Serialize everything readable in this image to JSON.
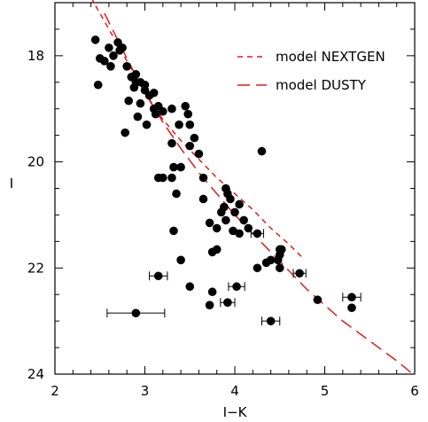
{
  "chart_data": {
    "type": "scatter",
    "xlabel": "I−K",
    "ylabel": "I",
    "xlim": [
      2,
      6
    ],
    "ylim": [
      24,
      17.0
    ],
    "y_inverted": true,
    "x_ticks": [
      2,
      3,
      4,
      5,
      6
    ],
    "y_ticks": [
      18,
      20,
      22,
      24
    ],
    "grid": false,
    "legend_position": "top-right",
    "colors": {
      "points": "#000000",
      "models": "#e41a1c"
    },
    "series": [
      {
        "type": "line",
        "style": "short-dash",
        "name": "model NEXTGEN",
        "x": [
          2.4,
          2.6,
          2.8,
          3.0,
          3.2,
          3.4,
          3.6,
          3.8,
          4.0,
          4.2,
          4.4,
          4.6,
          4.75
        ],
        "y": [
          16.9,
          17.5,
          18.1,
          18.7,
          19.2,
          19.6,
          19.95,
          20.3,
          20.6,
          20.9,
          21.25,
          21.55,
          21.8
        ]
      },
      {
        "type": "line",
        "style": "long-dash",
        "name": "model DUSTY",
        "x": [
          2.55,
          2.8,
          3.0,
          3.2,
          3.4,
          3.6,
          3.8,
          4.0,
          4.2,
          4.4,
          4.6,
          4.8,
          5.0,
          5.2,
          5.4,
          5.6,
          5.8,
          5.98
        ],
        "y": [
          17.2,
          18.05,
          18.7,
          19.25,
          19.75,
          20.2,
          20.6,
          21.0,
          21.35,
          21.7,
          22.05,
          22.4,
          22.7,
          23.0,
          23.25,
          23.5,
          23.75,
          24.0
        ]
      },
      {
        "type": "scatter",
        "x": [
          2.45,
          2.5,
          2.55,
          2.6,
          2.65,
          2.7,
          2.72,
          2.75,
          2.48,
          2.62,
          2.8,
          2.85,
          2.82,
          2.9,
          2.88,
          2.95,
          3.0,
          2.95,
          2.92,
          3.05,
          3.1,
          3.12,
          3.02,
          2.78,
          2.9,
          3.0,
          3.1,
          3.15,
          3.2,
          3.3,
          3.45,
          3.48,
          3.5,
          3.38,
          3.3,
          3.32,
          3.55,
          3.6,
          3.5,
          3.65,
          3.4,
          3.2,
          3.15,
          3.3,
          3.35,
          3.65,
          3.72,
          3.9,
          3.92,
          3.95,
          4.3,
          3.85,
          3.88,
          3.9,
          3.8,
          4.05,
          4.0,
          4.1,
          3.98,
          4.15,
          4.05,
          4.25,
          4.35,
          4.5,
          4.48,
          4.5,
          3.32,
          3.75,
          3.8,
          4.5,
          4.52,
          4.4,
          4.25,
          3.4,
          4.72,
          3.15,
          4.02,
          3.5,
          3.75,
          3.92,
          3.72,
          4.92,
          5.3,
          5.3,
          2.9,
          4.4
        ],
        "y": [
          17.7,
          18.05,
          18.1,
          17.85,
          18.0,
          17.75,
          17.9,
          17.85,
          18.55,
          18.2,
          18.2,
          18.4,
          18.85,
          18.35,
          18.6,
          18.5,
          18.65,
          18.9,
          19.15,
          18.75,
          19.0,
          19.1,
          19.3,
          19.45,
          18.5,
          18.55,
          18.7,
          18.95,
          19.05,
          19.0,
          18.95,
          19.1,
          19.3,
          19.3,
          19.65,
          20.1,
          19.55,
          19.85,
          19.7,
          20.3,
          20.1,
          20.3,
          20.3,
          20.3,
          20.6,
          20.7,
          21.15,
          20.5,
          20.6,
          20.7,
          19.8,
          20.95,
          20.85,
          21.1,
          21.25,
          20.8,
          20.95,
          21.1,
          21.3,
          21.25,
          21.35,
          21.35,
          21.9,
          21.75,
          21.85,
          22.0,
          21.3,
          21.7,
          21.65,
          21.65,
          21.65,
          21.85,
          22.0,
          21.85,
          22.1,
          22.15,
          22.35,
          22.35,
          22.45,
          22.65,
          22.7,
          22.6,
          22.55,
          22.75,
          22.85,
          23.0
        ],
        "xerr": [
          0,
          0,
          0,
          0,
          0,
          0,
          0,
          0,
          0,
          0,
          0,
          0,
          0,
          0,
          0,
          0,
          0,
          0,
          0,
          0,
          0,
          0,
          0,
          0,
          0,
          0,
          0,
          0,
          0,
          0,
          0,
          0,
          0,
          0,
          0,
          0,
          0,
          0,
          0,
          0,
          0,
          0,
          0,
          0,
          0,
          0,
          0,
          0,
          0,
          0,
          0,
          0,
          0,
          0,
          0,
          0,
          0,
          0,
          0,
          0,
          0,
          0.07,
          0,
          0,
          0,
          0,
          0,
          0,
          0,
          0,
          0,
          0,
          0,
          0,
          0.07,
          0.1,
          0.09,
          0,
          0,
          0.08,
          0,
          0,
          0.1,
          0,
          0.32,
          0.1
        ]
      }
    ]
  }
}
